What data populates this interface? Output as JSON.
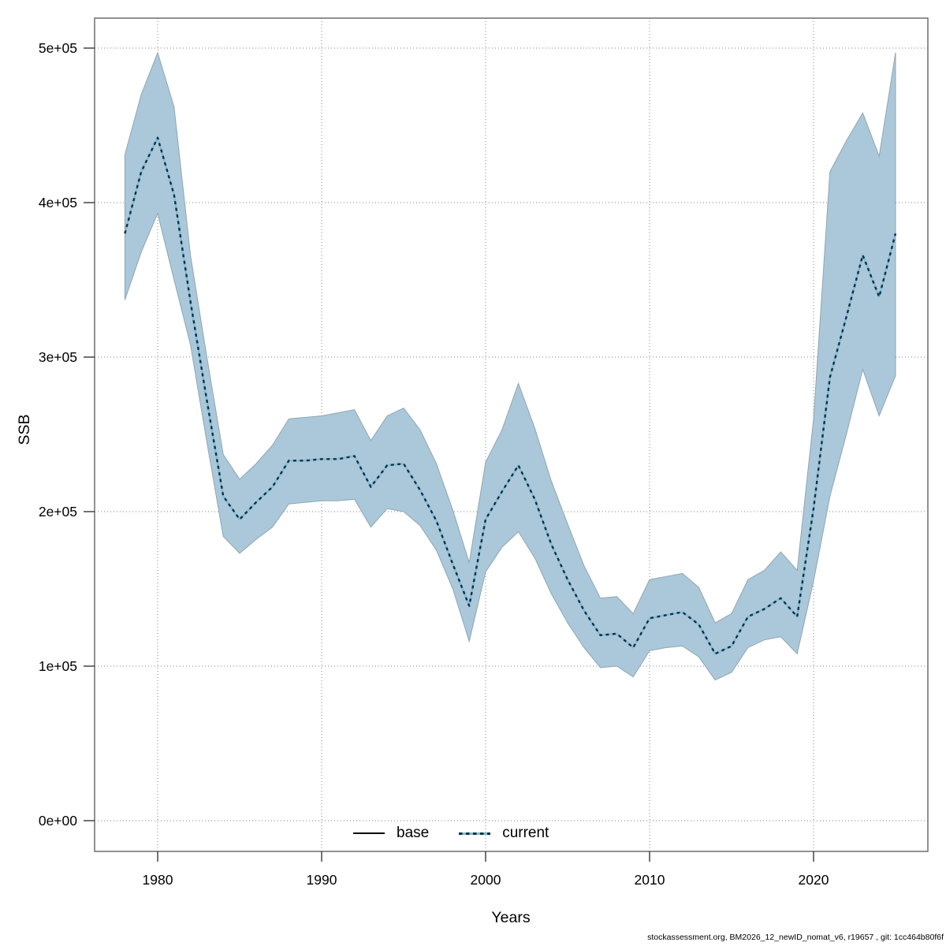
{
  "figure": {
    "footer": "stockassessment.org, BM2026_12_newID_nomat_v6, r19657 , git: 1cc464b80f6f",
    "background": "#ffffff"
  },
  "legend": {
    "items": [
      {
        "label": "base",
        "line_style": "solid",
        "color": "#000000"
      },
      {
        "label": "current",
        "line_style": "dotted",
        "color": "#12303e"
      }
    ]
  },
  "chart_data": {
    "type": "line",
    "title": "",
    "xlabel": "Years",
    "ylabel": "SSB",
    "xlim": [
      1976.2,
      2027.0
    ],
    "ylim": [
      -20000,
      520000
    ],
    "grid": "dotted",
    "legend_position": "bottom-inside",
    "x_ticks": [
      1980,
      1990,
      2000,
      2010,
      2020
    ],
    "x_tick_labels": [
      "1980",
      "1990",
      "2000",
      "2010",
      "2020"
    ],
    "y_ticks": [
      0,
      100000,
      200000,
      300000,
      400000,
      500000
    ],
    "y_tick_labels": [
      "0e+00",
      "1e+05",
      "2e+05",
      "3e+05",
      "4e+05",
      "5e+05"
    ],
    "colors": {
      "band_fill": "#aac8da",
      "band_edge": "#8fa6b2",
      "current_line_dark": "#12303e",
      "current_line_light": "#7fbcdc",
      "base_line": "#000000",
      "gridline": "#999999",
      "plot_border": "#6e6e6e",
      "tick": "#444444"
    },
    "years": [
      1978,
      1979,
      1980,
      1981,
      1982,
      1983,
      1984,
      1985,
      1986,
      1987,
      1988,
      1989,
      1990,
      1991,
      1992,
      1993,
      1994,
      1995,
      1996,
      1997,
      1998,
      1999,
      2000,
      2001,
      2002,
      2003,
      2004,
      2005,
      2006,
      2007,
      2008,
      2009,
      2010,
      2011,
      2012,
      2013,
      2014,
      2015,
      2016,
      2017,
      2018,
      2019,
      2020,
      2021,
      2022,
      2023,
      2024,
      2025
    ],
    "series": [
      {
        "name": "current",
        "mean": [
          380000,
          420000,
          442000,
          405000,
          336000,
          272000,
          210000,
          195000,
          206000,
          216000,
          233000,
          233000,
          234000,
          234000,
          236000,
          216000,
          230000,
          231000,
          214000,
          194000,
          166000,
          139000,
          195000,
          213000,
          230000,
          208000,
          179000,
          156000,
          136000,
          120000,
          121000,
          112000,
          131000,
          133000,
          135000,
          127000,
          108000,
          113000,
          132000,
          137000,
          144000,
          132000,
          202000,
          287000,
          326000,
          366000,
          339000,
          380000
        ],
        "lower": [
          337000,
          368000,
          393000,
          350000,
          308000,
          245000,
          184000,
          173000,
          182000,
          190000,
          205000,
          206000,
          207000,
          207000,
          208000,
          190000,
          202000,
          200000,
          191000,
          175000,
          150000,
          116000,
          161000,
          177000,
          187000,
          170000,
          147000,
          128000,
          112000,
          99000,
          100000,
          93000,
          110000,
          112000,
          113000,
          106000,
          91000,
          96000,
          112000,
          117000,
          119000,
          108000,
          155000,
          210000,
          250000,
          292000,
          262000,
          288000
        ],
        "upper": [
          431000,
          470000,
          497000,
          462000,
          366000,
          300000,
          237000,
          221000,
          231000,
          243000,
          260000,
          261000,
          262000,
          264000,
          266000,
          246000,
          262000,
          267000,
          253000,
          231000,
          201000,
          167000,
          232000,
          253000,
          283000,
          254000,
          220000,
          192000,
          165000,
          144000,
          145000,
          134000,
          156000,
          158000,
          160000,
          151000,
          128000,
          134000,
          156000,
          162000,
          174000,
          162000,
          260000,
          420000,
          440000,
          458000,
          430000,
          497000
        ]
      },
      {
        "name": "base",
        "note": "drawn beneath current line; not separately visible in plot"
      }
    ]
  }
}
